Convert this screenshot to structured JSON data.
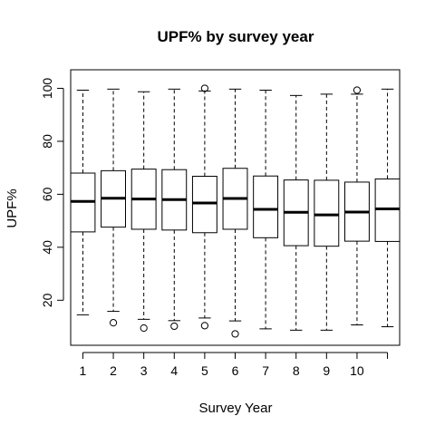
{
  "chart_data": {
    "type": "box",
    "title": "UPF% by survey year",
    "xlabel": "Survey Year",
    "ylabel": "UPF%",
    "ylim": [
      3,
      107
    ],
    "yticks": [
      20,
      40,
      60,
      80,
      100
    ],
    "categories": [
      "1",
      "2",
      "3",
      "4",
      "5",
      "6",
      "7",
      "8",
      "9",
      "10",
      ""
    ],
    "x_tick_labels": [
      "1",
      "2",
      "3",
      "4",
      "5",
      "6",
      "7",
      "8",
      "9",
      "10"
    ],
    "boxes": [
      {
        "category": "1",
        "whisker_low": 14.5,
        "q1": 45.8,
        "median": 57.3,
        "q3": 68.0,
        "whisker_high": 99.3,
        "outliers": []
      },
      {
        "category": "2",
        "whisker_low": 15.8,
        "q1": 47.6,
        "median": 58.5,
        "q3": 68.9,
        "whisker_high": 99.7,
        "outliers": [
          11.5
        ]
      },
      {
        "category": "3",
        "whisker_low": 12.8,
        "q1": 46.8,
        "median": 58.2,
        "q3": 69.5,
        "whisker_high": 98.7,
        "outliers": [
          9.5
        ]
      },
      {
        "category": "4",
        "whisker_low": 12.3,
        "q1": 46.5,
        "median": 58.0,
        "q3": 69.3,
        "whisker_high": 99.7,
        "outliers": [
          10.2
        ]
      },
      {
        "category": "5",
        "whisker_low": 13.3,
        "q1": 45.5,
        "median": 56.7,
        "q3": 66.8,
        "whisker_high": 99.0,
        "outliers": [
          10.4,
          100.0
        ]
      },
      {
        "category": "6",
        "whisker_low": 12.2,
        "q1": 46.8,
        "median": 58.4,
        "q3": 69.8,
        "whisker_high": 99.7,
        "outliers": [
          7.3
        ]
      },
      {
        "category": "7",
        "whisker_low": 9.2,
        "q1": 43.6,
        "median": 54.3,
        "q3": 66.9,
        "whisker_high": 99.3,
        "outliers": []
      },
      {
        "category": "8",
        "whisker_low": 8.7,
        "q1": 40.6,
        "median": 53.2,
        "q3": 65.4,
        "whisker_high": 97.3,
        "outliers": []
      },
      {
        "category": "9",
        "whisker_low": 8.7,
        "q1": 40.4,
        "median": 52.2,
        "q3": 65.3,
        "whisker_high": 97.8,
        "outliers": []
      },
      {
        "category": "10",
        "whisker_low": 10.7,
        "q1": 42.3,
        "median": 53.3,
        "q3": 64.6,
        "whisker_high": 97.8,
        "outliers": [
          99.3
        ]
      },
      {
        "category": "",
        "whisker_low": 10.0,
        "q1": 42.2,
        "median": 54.5,
        "q3": 65.8,
        "whisker_high": 99.7,
        "outliers": []
      }
    ],
    "grid": false,
    "legend": "none"
  }
}
